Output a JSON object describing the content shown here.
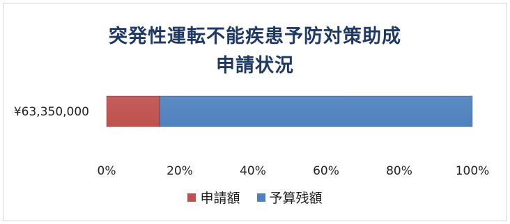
{
  "chart_data": {
    "type": "bar",
    "orientation": "horizontal",
    "stacked": "percent",
    "title_lines": [
      "突発性運転不能疾患予防対策助成",
      "申請状況"
    ],
    "categories": [
      "¥63,350,000"
    ],
    "series": [
      {
        "name": "申請額",
        "values": [
          14.5
        ],
        "color": "#c0504d"
      },
      {
        "name": "予算残額",
        "values": [
          85.5
        ],
        "color": "#4f81bd"
      }
    ],
    "x_ticks": [
      "0%",
      "20%",
      "40%",
      "60%",
      "80%",
      "100%"
    ],
    "xlim": [
      0,
      100
    ],
    "grid": false,
    "legend": "bottom"
  }
}
